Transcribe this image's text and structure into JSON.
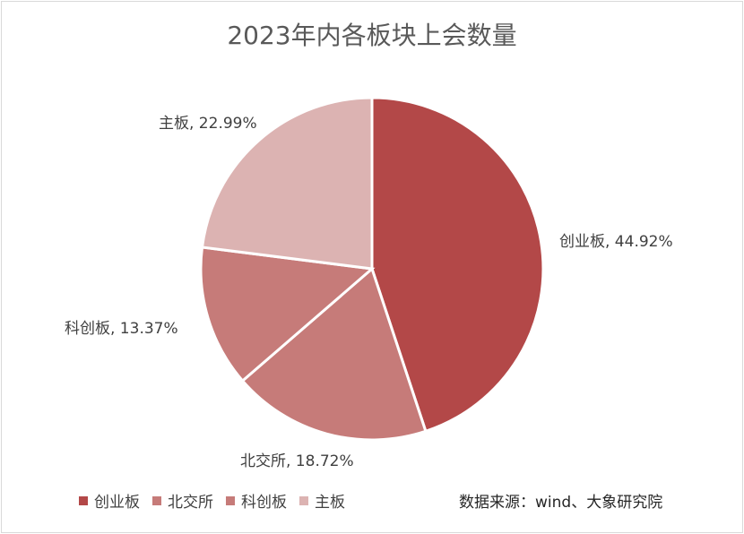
{
  "title": "2023年内各板块上会数量",
  "source": "数据来源：wind、大象研究院",
  "chart_data": {
    "type": "pie",
    "title": "2023年内各板块上会数量",
    "categories": [
      "创业板",
      "北交所",
      "科创板",
      "主板"
    ],
    "values": [
      44.92,
      18.72,
      13.37,
      22.99
    ],
    "data_labels": [
      "创业板, 44.92%",
      "北交所, 18.72%",
      "科创板, 13.37%",
      "主板, 22.99%"
    ],
    "colors": [
      "#b34848",
      "#c67b79",
      "#c67b79",
      "#dcb3b2"
    ],
    "legend": [
      "创业板",
      "北交所",
      "科创板",
      "主板"
    ],
    "legend_colors": [
      "#b34848",
      "#c67b79",
      "#c67b79",
      "#dcb3b2"
    ],
    "legend_position": "bottom-left",
    "start_angle": "12 o'clock",
    "direction": "clockwise"
  }
}
